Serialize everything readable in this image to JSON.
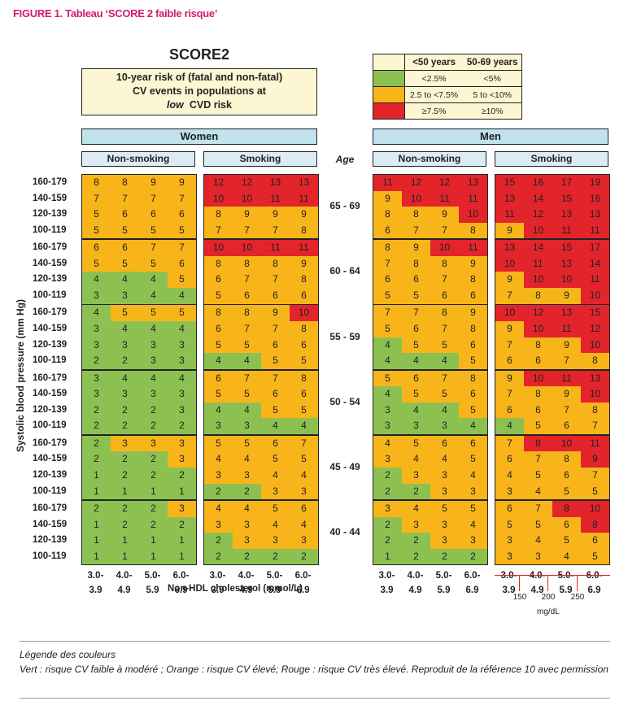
{
  "figure_title": "FIGURE 1. Tableau ‘SCORE 2 faible risque’",
  "colors": {
    "green": "#8cc152",
    "orange": "#f8b519",
    "red": "#e3242b",
    "header_blue": "#bfe2ed",
    "box_yellow": "#fdf6d3"
  },
  "chart_data": {
    "type": "table",
    "title": "SCORE2",
    "subtitle_lines": [
      "10-year risk of (fatal and non-fatal)",
      "CV events in populations at"
    ],
    "subtitle_low": "low",
    "subtitle_tail": "CVD risk",
    "legend": {
      "headers": [
        "<50 years",
        "50-69 years"
      ],
      "rows": [
        {
          "color": "green",
          "under50": "<2.5%",
          "age50_69": "<5%"
        },
        {
          "color": "orange",
          "under50": "2.5 to <7.5%",
          "age50_69": "5 to <10%"
        },
        {
          "color": "red",
          "under50": "≥7.5%",
          "age50_69": "≥10%"
        }
      ]
    },
    "sex_labels": [
      "Women",
      "Men"
    ],
    "smoking_labels": [
      "Non-smoking",
      "Smoking"
    ],
    "age_header": "Age",
    "age_groups": [
      "65 - 69",
      "60 - 64",
      "55 - 59",
      "50 - 54",
      "45 - 49",
      "40 - 44"
    ],
    "sbp_labels": [
      "160-179",
      "140-159",
      "120-139",
      "100-119"
    ],
    "cholesterol_labels": [
      [
        "3.0-",
        "3.9"
      ],
      [
        "4.0-",
        "4.9"
      ],
      [
        "5.0-",
        "5.9"
      ],
      [
        "6.0-",
        "6.9"
      ]
    ],
    "xlabel": "Non-HDL cholesterol (mmol/L)",
    "ylabel": "Systolic blood pressure (mm Hg)",
    "mgdl_ticks": [
      "150",
      "200",
      "250"
    ],
    "mgdl_unit": "mg/dL",
    "women_nonsmoking": [
      [
        [
          8,
          8,
          9,
          9
        ],
        [
          7,
          7,
          7,
          7
        ],
        [
          5,
          6,
          6,
          6
        ],
        [
          5,
          5,
          5,
          5
        ]
      ],
      [
        [
          6,
          6,
          7,
          7
        ],
        [
          5,
          5,
          5,
          6
        ],
        [
          4,
          4,
          4,
          5
        ],
        [
          3,
          3,
          4,
          4
        ]
      ],
      [
        [
          4,
          5,
          5,
          5
        ],
        [
          3,
          4,
          4,
          4
        ],
        [
          3,
          3,
          3,
          3
        ],
        [
          2,
          2,
          3,
          3
        ]
      ],
      [
        [
          3,
          4,
          4,
          4
        ],
        [
          3,
          3,
          3,
          3
        ],
        [
          2,
          2,
          2,
          3
        ],
        [
          2,
          2,
          2,
          2
        ]
      ],
      [
        [
          2,
          3,
          3,
          3
        ],
        [
          2,
          2,
          2,
          3
        ],
        [
          1,
          2,
          2,
          2
        ],
        [
          1,
          1,
          1,
          1
        ]
      ],
      [
        [
          2,
          2,
          2,
          3
        ],
        [
          1,
          2,
          2,
          2
        ],
        [
          1,
          1,
          1,
          1
        ],
        [
          1,
          1,
          1,
          1
        ]
      ]
    ],
    "women_smoking": [
      [
        [
          12,
          12,
          13,
          13
        ],
        [
          10,
          10,
          11,
          11
        ],
        [
          8,
          9,
          9,
          9
        ],
        [
          7,
          7,
          7,
          8
        ]
      ],
      [
        [
          10,
          10,
          11,
          11
        ],
        [
          8,
          8,
          8,
          9
        ],
        [
          6,
          7,
          7,
          8
        ],
        [
          5,
          6,
          6,
          6
        ]
      ],
      [
        [
          8,
          8,
          9,
          10
        ],
        [
          6,
          7,
          7,
          8
        ],
        [
          5,
          5,
          6,
          6
        ],
        [
          4,
          4,
          5,
          5
        ]
      ],
      [
        [
          6,
          7,
          7,
          8
        ],
        [
          5,
          5,
          6,
          6
        ],
        [
          4,
          4,
          5,
          5
        ],
        [
          3,
          3,
          4,
          4
        ]
      ],
      [
        [
          5,
          5,
          6,
          7
        ],
        [
          4,
          4,
          5,
          5
        ],
        [
          3,
          3,
          4,
          4
        ],
        [
          2,
          2,
          3,
          3
        ]
      ],
      [
        [
          4,
          4,
          5,
          6
        ],
        [
          3,
          3,
          4,
          4
        ],
        [
          2,
          3,
          3,
          3
        ],
        [
          2,
          2,
          2,
          2
        ]
      ]
    ],
    "men_nonsmoking": [
      [
        [
          11,
          12,
          12,
          13
        ],
        [
          9,
          10,
          11,
          11
        ],
        [
          8,
          8,
          9,
          10
        ],
        [
          6,
          7,
          7,
          8
        ]
      ],
      [
        [
          8,
          9,
          10,
          11
        ],
        [
          7,
          8,
          8,
          9
        ],
        [
          6,
          6,
          7,
          8
        ],
        [
          5,
          5,
          6,
          6
        ]
      ],
      [
        [
          7,
          7,
          8,
          9
        ],
        [
          5,
          6,
          7,
          8
        ],
        [
          4,
          5,
          5,
          6
        ],
        [
          4,
          4,
          4,
          5
        ]
      ],
      [
        [
          5,
          6,
          7,
          8
        ],
        [
          4,
          5,
          5,
          6
        ],
        [
          3,
          4,
          4,
          5
        ],
        [
          3,
          3,
          3,
          4
        ]
      ],
      [
        [
          4,
          5,
          6,
          6
        ],
        [
          3,
          4,
          4,
          5
        ],
        [
          2,
          3,
          3,
          4
        ],
        [
          2,
          2,
          3,
          3
        ]
      ],
      [
        [
          3,
          4,
          5,
          5
        ],
        [
          2,
          3,
          3,
          4
        ],
        [
          2,
          2,
          3,
          3
        ],
        [
          1,
          2,
          2,
          2
        ]
      ]
    ],
    "men_smoking": [
      [
        [
          15,
          16,
          17,
          19
        ],
        [
          13,
          14,
          15,
          16
        ],
        [
          11,
          12,
          13,
          13
        ],
        [
          9,
          10,
          11,
          11
        ]
      ],
      [
        [
          13,
          14,
          15,
          17
        ],
        [
          10,
          11,
          13,
          14
        ],
        [
          9,
          10,
          10,
          11
        ],
        [
          7,
          8,
          9,
          10
        ]
      ],
      [
        [
          10,
          12,
          13,
          15
        ],
        [
          9,
          10,
          11,
          12
        ],
        [
          7,
          8,
          9,
          10
        ],
        [
          6,
          6,
          7,
          8
        ]
      ],
      [
        [
          9,
          10,
          11,
          13
        ],
        [
          7,
          8,
          9,
          10
        ],
        [
          6,
          6,
          7,
          8
        ],
        [
          4,
          5,
          6,
          7
        ]
      ],
      [
        [
          7,
          8,
          10,
          11
        ],
        [
          6,
          7,
          8,
          9
        ],
        [
          4,
          5,
          6,
          7
        ],
        [
          3,
          4,
          5,
          5
        ]
      ],
      [
        [
          6,
          7,
          8,
          10
        ],
        [
          5,
          5,
          6,
          8
        ],
        [
          3,
          4,
          5,
          6
        ],
        [
          3,
          3,
          4,
          5
        ]
      ]
    ],
    "cell_colors": {
      "women_nonsmoking": [
        [
          "OOOO",
          "OOOO",
          "OOOO",
          "OOOO"
        ],
        [
          "OOOO",
          "OOOO",
          "GGGO",
          "GGGG"
        ],
        [
          "GOOO",
          "GGGG",
          "GGGG",
          "GGGG"
        ],
        [
          "GGGG",
          "GGGG",
          "GGGG",
          "GGGG"
        ],
        [
          "GOOO",
          "GGGO",
          "GGGG",
          "GGGG"
        ],
        [
          "GGGO",
          "GGGG",
          "GGGG",
          "GGGG"
        ]
      ],
      "women_smoking": [
        [
          "RRRR",
          "RRRR",
          "OOOO",
          "OOOO"
        ],
        [
          "RRRR",
          "OOOO",
          "OOOO",
          "OOOO"
        ],
        [
          "OOOR",
          "OOOO",
          "OOOO",
          "GGOO"
        ],
        [
          "OOOO",
          "OOOO",
          "GGOO",
          "GGGG"
        ],
        [
          "OOOO",
          "OOOO",
          "OOOO",
          "GGOO"
        ],
        [
          "OOOO",
          "OOOO",
          "GOOO",
          "GGGG"
        ]
      ],
      "men_nonsmoking": [
        [
          "RRRR",
          "ORRR",
          "OOOR",
          "OOOO"
        ],
        [
          "OORR",
          "OOOO",
          "OOOO",
          "OOOO"
        ],
        [
          "OOOO",
          "OOOO",
          "GOOO",
          "GGGO"
        ],
        [
          "OOOO",
          "GOOO",
          "GGGO",
          "GGGG"
        ],
        [
          "OOOO",
          "OOOO",
          "GOOO",
          "GGOO"
        ],
        [
          "OOOO",
          "GOOO",
          "GGOO",
          "GGGG"
        ]
      ],
      "men_smoking": [
        [
          "RRRR",
          "RRRR",
          "RRRR",
          "ORRR"
        ],
        [
          "RRRR",
          "RRRR",
          "ORRR",
          "OOOR"
        ],
        [
          "RRRR",
          "ORRR",
          "OOOR",
          "OOOO"
        ],
        [
          "ORRR",
          "OOOR",
          "OOOO",
          "GOOO"
        ],
        [
          "ORRR",
          "OOOR",
          "OOOO",
          "OOOO"
        ],
        [
          "OORR",
          "OOOR",
          "OOOO",
          "OOOO"
        ]
      ]
    }
  },
  "footnote": {
    "title": "Légende des couleurs",
    "text": "Vert : risque CV faible à modéré ; Orange : risque CV élevé; Rouge : risque CV très élevé. Reproduit de la référence 10 avec permission"
  }
}
